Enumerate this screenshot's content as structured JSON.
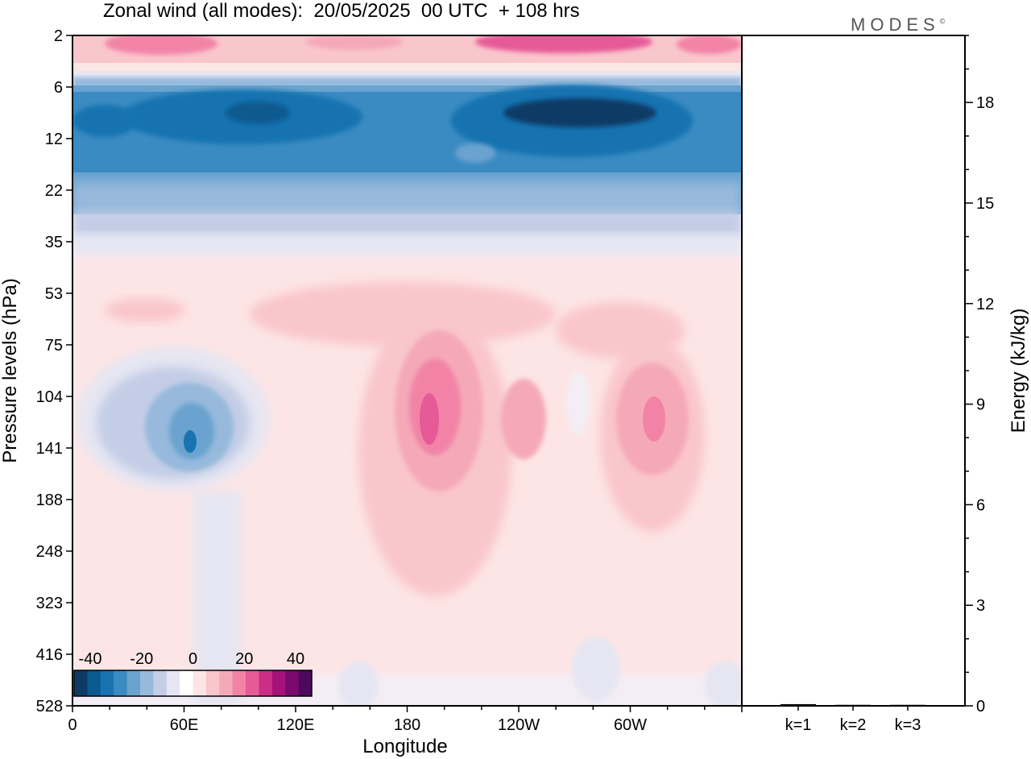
{
  "header": {
    "title": "Zonal wind (all modes):  20/05/2025  00 UTC  + 108 hrs",
    "brand": "MODES",
    "brand_mark": "©"
  },
  "chart_data": [
    {
      "type": "heatmap",
      "title": "Zonal wind (all modes):  20/05/2025  00 UTC  + 108 hrs",
      "xlabel": "Longitude",
      "ylabel": "Pressure levels (hPa)",
      "x_ticks": [
        "0",
        "60E",
        "120E",
        "180",
        "120W",
        "60W"
      ],
      "y_ticks": [
        "2",
        "6",
        "12",
        "22",
        "35",
        "53",
        "75",
        "104",
        "141",
        "188",
        "248",
        "323",
        "416",
        "528"
      ],
      "y_scale": "log",
      "colorbar": {
        "ticks": [
          "-40",
          "-20",
          "0",
          "20",
          "40"
        ],
        "colors": [
          "#0d3b66",
          "#0b5a8f",
          "#1873b0",
          "#3a8bc2",
          "#6aa3cf",
          "#96b9dc",
          "#c3cde6",
          "#e6e6f2",
          "#ffffff",
          "#fde5e5",
          "#f9c6cb",
          "#f5a9b8",
          "#f283a7",
          "#e65a98",
          "#cc2e86",
          "#a6127a",
          "#7a0a6e",
          "#4d0a5c"
        ],
        "placement": "bottom-left"
      },
      "features": [
        {
          "region": "upper stratosphere near 2 hPa",
          "sign": "westerly",
          "peak": 20
        },
        {
          "region": "6-22 hPa band across all longitudes",
          "sign": "easterly",
          "peak": -40
        },
        {
          "region": "60E near 104-141 hPa",
          "sign": "easterly",
          "peak": -25
        },
        {
          "region": "near 180 around 104-141 hPa",
          "sign": "westerly",
          "peak": 30
        },
        {
          "region": "80W near 104-141 hPa",
          "sign": "westerly",
          "peak": 25
        }
      ]
    },
    {
      "type": "bar",
      "ylabel": "Energy (kJ/kg)",
      "categories": [
        "k=1",
        "k=2",
        "k=3"
      ],
      "values": [
        0.05,
        0.03,
        0.03
      ],
      "ylim": [
        0,
        20
      ],
      "y_ticks": [
        0,
        3,
        6,
        9,
        12,
        15,
        18
      ]
    }
  ]
}
